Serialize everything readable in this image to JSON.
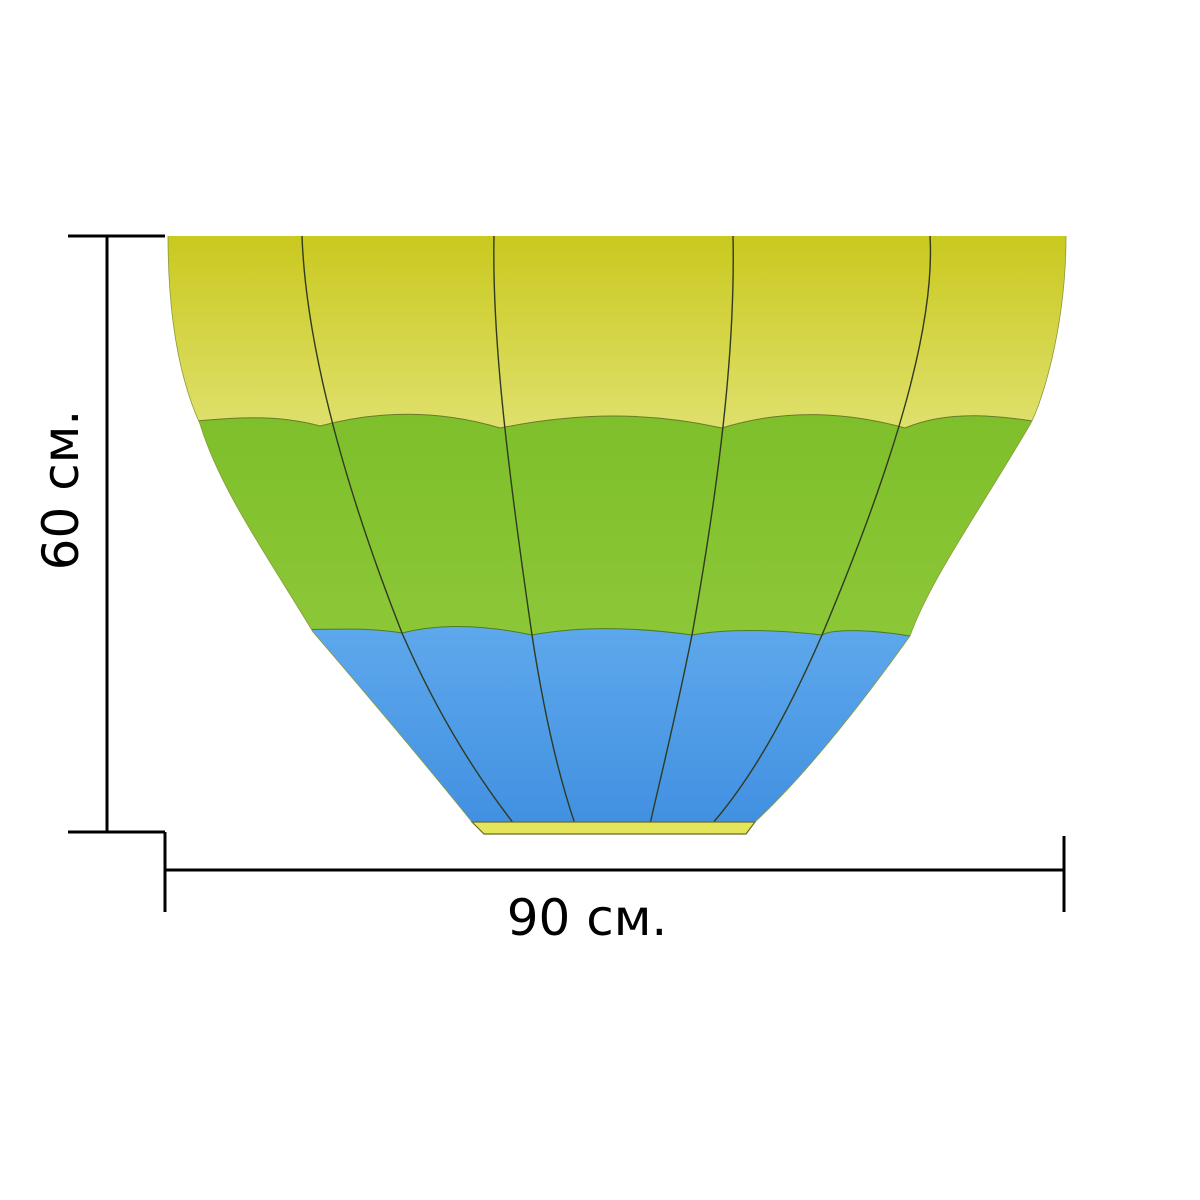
{
  "dimensions": {
    "height_label": "60 см.",
    "width_label": "90 см."
  },
  "balloon": {
    "bands": [
      {
        "name": "top",
        "color_top": "#c9c81c",
        "color_bottom": "#dfe06c"
      },
      {
        "name": "middle",
        "color_top": "#7ebf2b",
        "color_bottom": "#8cc737"
      },
      {
        "name": "bottom",
        "color_top": "#5ea8ec",
        "color_bottom": "#3f8ee0"
      }
    ],
    "base_strip_color": "#e4e55a",
    "seam_color": "#2f3b20"
  }
}
